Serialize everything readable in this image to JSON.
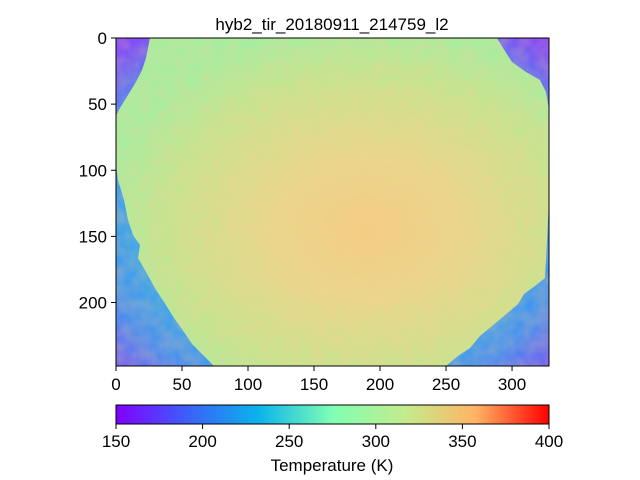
{
  "figure": {
    "title": "hyb2_tir_20180911_214759_l2"
  },
  "chart_data": {
    "type": "heatmap",
    "title": "hyb2_tir_20180911_214759_l2",
    "x_ticks": [
      "0",
      "50",
      "100",
      "150",
      "200",
      "250",
      "300"
    ],
    "y_ticks": [
      "0",
      "50",
      "100",
      "150",
      "200"
    ],
    "xlim": [
      0,
      328
    ],
    "ylim": [
      248,
      0
    ],
    "colorbar": {
      "label": "Temperature (K)",
      "ticks": [
        "150",
        "200",
        "250",
        "300",
        "350",
        "400"
      ],
      "range": [
        150,
        400
      ],
      "colormap": "rainbow"
    },
    "background_temperature_range_K": [
      150,
      225
    ],
    "asteroid_surface_temperature_range_K": [
      285,
      345
    ]
  },
  "colors": {
    "cold_corner": "#7a3cff",
    "space_background": "#3d8cf5",
    "surface_mid": "#b5e38a",
    "surface_warm": "#f7c27a"
  }
}
